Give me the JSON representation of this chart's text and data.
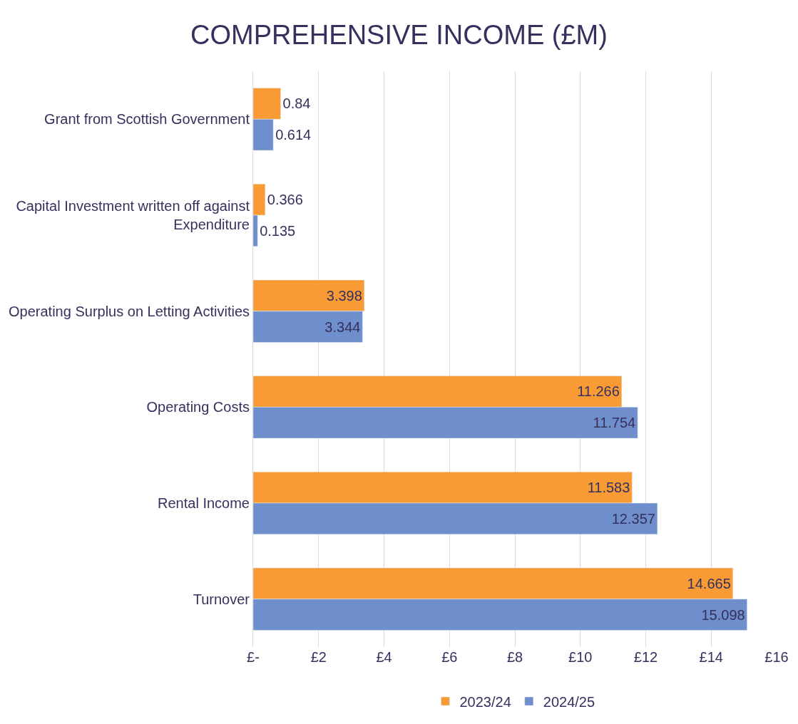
{
  "chart_data": {
    "type": "bar",
    "orientation": "horizontal",
    "title": "COMPREHENSIVE INCOME (£M)",
    "categories": [
      "Grant from Scottish Government",
      "Capital Investment written off against Expenditure",
      "Operating Surplus on Letting Activities",
      "Operating Costs",
      "Rental Income",
      "Turnover"
    ],
    "series": [
      {
        "name": "2023/24",
        "color": "#f99b35",
        "values": [
          0.84,
          0.366,
          3.398,
          11.266,
          11.583,
          14.665
        ]
      },
      {
        "name": "2024/25",
        "color": "#6e8fcb",
        "values": [
          0.614,
          0.135,
          3.344,
          11.754,
          12.357,
          15.098
        ]
      }
    ],
    "xlim": [
      0,
      16
    ],
    "xticks": [
      {
        "value": 0,
        "label": "£-"
      },
      {
        "value": 2,
        "label": "£2"
      },
      {
        "value": 4,
        "label": "£4"
      },
      {
        "value": 6,
        "label": "£6"
      },
      {
        "value": 8,
        "label": "£8"
      },
      {
        "value": 10,
        "label": "£10"
      },
      {
        "value": 12,
        "label": "£12"
      },
      {
        "value": 14,
        "label": "£14"
      },
      {
        "value": 16,
        "label": "£16"
      }
    ],
    "grid": "x",
    "legend": "bottom",
    "data_labels": true
  }
}
